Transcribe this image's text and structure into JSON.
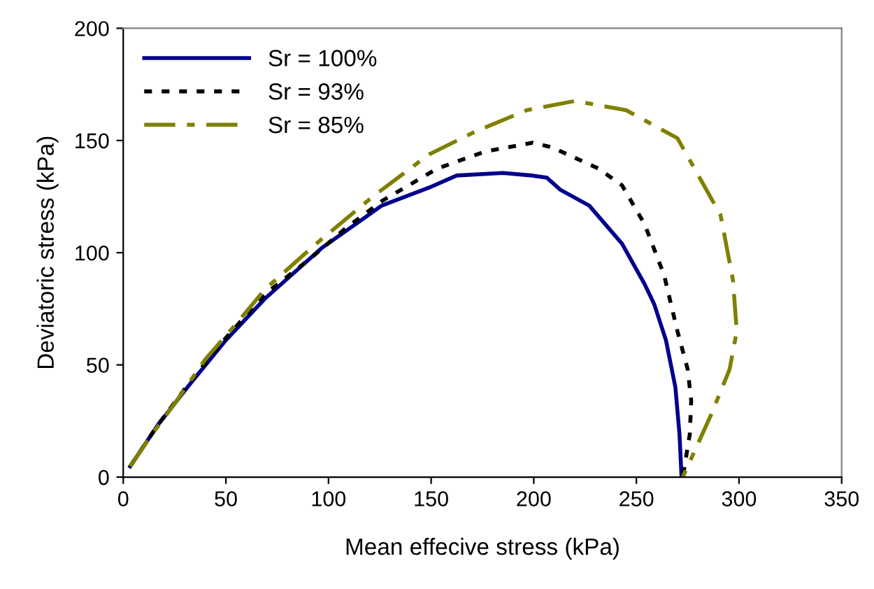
{
  "chart_data": {
    "type": "line",
    "xlabel": "Mean effecive stress (kPa)",
    "ylabel": "Deviatoric stress (kPa)",
    "xlim": [
      0,
      350
    ],
    "xticks": [
      0,
      50,
      100,
      150,
      200,
      250,
      300,
      350
    ],
    "ylim": [
      0,
      200
    ],
    "yticks": [
      0,
      50,
      100,
      150,
      200
    ],
    "grid": false,
    "legend": "top left",
    "marker": "none",
    "series": [
      {
        "name": "Sr = 100%",
        "color": "#00008b",
        "line_style": "solid",
        "x": [
          3.4,
          17,
          33,
          50,
          69,
          96.6,
          126,
          149,
          162.5,
          185,
          199,
          206.4,
          213,
          227,
          243,
          254,
          258.7,
          264.4,
          269,
          271,
          272
        ],
        "values": [
          4.8,
          23.4,
          42,
          61,
          79.5,
          102,
          121,
          129,
          134.4,
          135.5,
          134.4,
          133.4,
          128,
          121,
          104,
          86,
          77,
          61,
          40,
          19,
          0
        ]
      },
      {
        "name": "Sr = 93%",
        "color": "#000000",
        "line_style": "dotted",
        "x": [
          3.4,
          17,
          33,
          50,
          69,
          92,
          108,
          126,
          153,
          176,
          199.5,
          208.7,
          231.5,
          243,
          254,
          263.5,
          270,
          275,
          276.7,
          276,
          272.6
        ],
        "values": [
          4.8,
          23.4,
          43,
          62,
          81.5,
          98,
          110.6,
          123,
          137.5,
          145,
          149,
          147,
          137.5,
          130,
          112.7,
          90,
          65,
          48,
          34,
          19,
          0
        ]
      },
      {
        "name": "Sr = 85%",
        "color": "#808000",
        "line_style": "dashed",
        "x": [
          3.4,
          14,
          26,
          40,
          55.7,
          69,
          94,
          121.6,
          149,
          171.6,
          196.6,
          220,
          245,
          270,
          277,
          291,
          297,
          298.9,
          295.4,
          286.3,
          272.6
        ],
        "values": [
          4.8,
          19,
          34,
          52.5,
          69,
          83.6,
          104,
          125,
          143.8,
          154,
          163.5,
          167.6,
          163.5,
          151,
          139.6,
          116.8,
          88,
          65,
          48,
          27.6,
          0
        ]
      }
    ]
  }
}
